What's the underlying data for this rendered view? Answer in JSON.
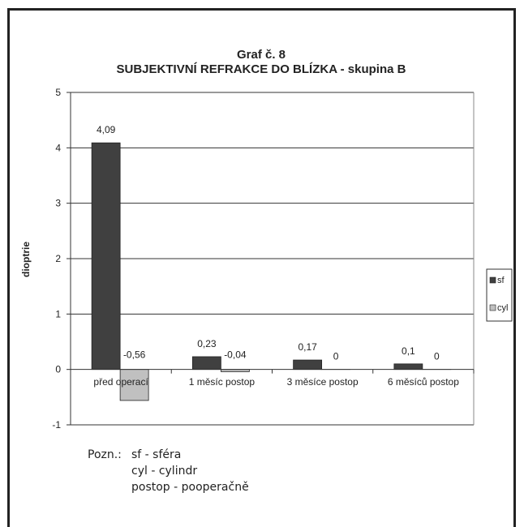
{
  "chart_data": {
    "type": "bar",
    "title": "Graf č. 8",
    "subtitle": "SUBJEKTIVNÍ REFRAKCE  DO BLÍZKA  - skupina B",
    "ylabel": "dioptrie",
    "xlabel": "",
    "ylim": [
      -1,
      5
    ],
    "yticks": [
      "-1",
      "0",
      "1",
      "2",
      "3",
      "4",
      "5"
    ],
    "grid": true,
    "legend_position": "right",
    "categories": [
      "před operací",
      "1 měsíc postop",
      "3 měsíce postop",
      "6 měsíců postop"
    ],
    "series": [
      {
        "name": "sf",
        "values": [
          4.09,
          0.23,
          0.17,
          0.1
        ],
        "labels": [
          "4,09",
          "0,23",
          "0,17",
          "0,1"
        ],
        "color": "#404040"
      },
      {
        "name": "cyl",
        "values": [
          -0.56,
          -0.04,
          0,
          0
        ],
        "labels": [
          "-0,56",
          "-0,04",
          "0",
          "0"
        ],
        "color": "#c0c0c0"
      }
    ]
  },
  "notes": {
    "prefix": "Pozn.:",
    "lines": [
      "sf - sféra",
      "cyl - cylindr",
      "postop - pooperačně"
    ]
  }
}
